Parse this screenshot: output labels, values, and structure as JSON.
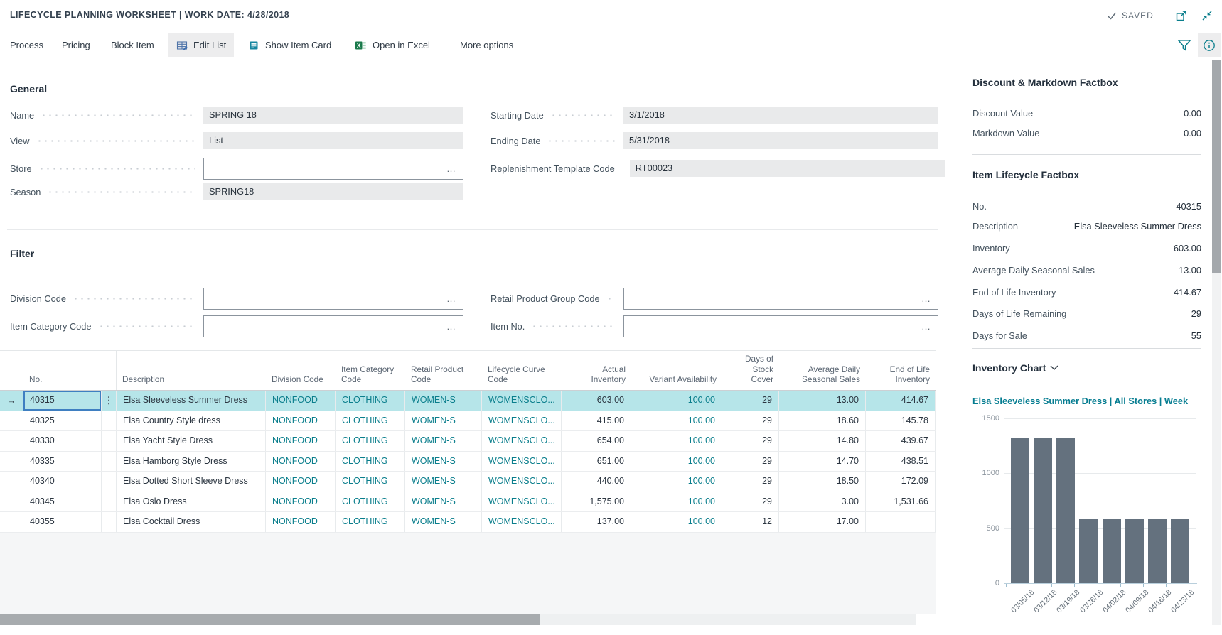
{
  "colors": {
    "accent_teal": "#0a7e8c",
    "selected_row": "#b6e5e9",
    "bar": "#64717e",
    "focus_border": "#3f7fc1"
  },
  "titlebar": {
    "title": "LIFECYCLE PLANNING WORKSHEET | WORK DATE: 4/28/2018",
    "saved": "SAVED"
  },
  "ribbon": {
    "items": [
      "Process",
      "Pricing",
      "Block Item"
    ],
    "edit_list": "Edit List",
    "show_item_card": "Show Item Card",
    "open_in_excel": "Open in Excel",
    "more_options": "More options"
  },
  "general": {
    "heading": "General",
    "name_label": "Name",
    "name_value": "SPRING 18",
    "view_label": "View",
    "view_value": "List",
    "store_label": "Store",
    "store_value": "",
    "season_label": "Season",
    "season_value": "SPRING18",
    "starting_date_label": "Starting Date",
    "starting_date_value": "3/1/2018",
    "ending_date_label": "Ending Date",
    "ending_date_value": "5/31/2018",
    "replenishment_template_code_label": "Replenishment Template Code",
    "replenishment_template_code_value": "RT00023"
  },
  "filter": {
    "heading": "Filter",
    "division_code_label": "Division Code",
    "division_code_value": "",
    "item_category_code_label": "Item Category Code",
    "item_category_code_value": "",
    "retail_product_group_code_label": "Retail Product Group Code",
    "retail_product_group_code_value": "",
    "item_no_label": "Item No.",
    "item_no_value": ""
  },
  "ui": {
    "ellipsis": "…",
    "row_arrow": "→",
    "row_menu": "⋮"
  },
  "table": {
    "columns": [
      {
        "key": "no",
        "label": "No.",
        "align": "left",
        "link": false
      },
      {
        "key": "description",
        "label": "Description",
        "align": "left",
        "link": false
      },
      {
        "key": "division_code",
        "label": "Division Code",
        "align": "left",
        "link": true
      },
      {
        "key": "item_category_code",
        "label": "Item Category Code",
        "align": "left",
        "link": true
      },
      {
        "key": "retail_product_code",
        "label": "Retail Product Code",
        "align": "left",
        "link": true
      },
      {
        "key": "lifecycle_curve_code",
        "label": "Lifecycle Curve Code",
        "align": "left",
        "link": true
      },
      {
        "key": "actual_inventory",
        "label": "Actual Inventory",
        "align": "right",
        "link": false
      },
      {
        "key": "variant_availability",
        "label": "Variant Availability",
        "align": "right",
        "link": true
      },
      {
        "key": "days_of_stock_cover",
        "label": "Days of Stock Cover",
        "align": "right",
        "link": false
      },
      {
        "key": "average_daily_seasonal_sales",
        "label": "Average Daily Seasonal Sales",
        "align": "right",
        "link": false
      },
      {
        "key": "end_of_life_inventory",
        "label": "End of Life Inventory",
        "align": "right",
        "link": false
      }
    ],
    "rows": [
      {
        "selected": true,
        "no": "40315",
        "description": "Elsa Sleeveless Summer Dress",
        "division_code": "NONFOOD",
        "item_category_code": "CLOTHING",
        "retail_product_code": "WOMEN-S",
        "lifecycle_curve_code": "WOMENSCLO...",
        "actual_inventory": "603.00",
        "variant_availability": "100.00",
        "days_of_stock_cover": "29",
        "average_daily_seasonal_sales": "13.00",
        "end_of_life_inventory": "414.67"
      },
      {
        "selected": false,
        "no": "40325",
        "description": "Elsa Country Style dress",
        "division_code": "NONFOOD",
        "item_category_code": "CLOTHING",
        "retail_product_code": "WOMEN-S",
        "lifecycle_curve_code": "WOMENSCLO...",
        "actual_inventory": "415.00",
        "variant_availability": "100.00",
        "days_of_stock_cover": "29",
        "average_daily_seasonal_sales": "18.60",
        "end_of_life_inventory": "145.78"
      },
      {
        "selected": false,
        "no": "40330",
        "description": "Elsa Yacht Style Dress",
        "division_code": "NONFOOD",
        "item_category_code": "CLOTHING",
        "retail_product_code": "WOMEN-S",
        "lifecycle_curve_code": "WOMENSCLO...",
        "actual_inventory": "654.00",
        "variant_availability": "100.00",
        "days_of_stock_cover": "29",
        "average_daily_seasonal_sales": "14.80",
        "end_of_life_inventory": "439.67"
      },
      {
        "selected": false,
        "no": "40335",
        "description": "Elsa Hamborg Style Dress",
        "division_code": "NONFOOD",
        "item_category_code": "CLOTHING",
        "retail_product_code": "WOMEN-S",
        "lifecycle_curve_code": "WOMENSCLO...",
        "actual_inventory": "651.00",
        "variant_availability": "100.00",
        "days_of_stock_cover": "29",
        "average_daily_seasonal_sales": "14.70",
        "end_of_life_inventory": "438.51"
      },
      {
        "selected": false,
        "no": "40340",
        "description": "Elsa Dotted Short Sleeve Dress",
        "division_code": "NONFOOD",
        "item_category_code": "CLOTHING",
        "retail_product_code": "WOMEN-S",
        "lifecycle_curve_code": "WOMENSCLO...",
        "actual_inventory": "440.00",
        "variant_availability": "100.00",
        "days_of_stock_cover": "29",
        "average_daily_seasonal_sales": "18.50",
        "end_of_life_inventory": "172.09"
      },
      {
        "selected": false,
        "no": "40345",
        "description": "Elsa Oslo Dress",
        "division_code": "NONFOOD",
        "item_category_code": "CLOTHING",
        "retail_product_code": "WOMEN-S",
        "lifecycle_curve_code": "WOMENSCLO...",
        "actual_inventory": "1,575.00",
        "variant_availability": "100.00",
        "days_of_stock_cover": "29",
        "average_daily_seasonal_sales": "3.00",
        "end_of_life_inventory": "1,531.66"
      },
      {
        "selected": false,
        "no": "40355",
        "description": "Elsa Cocktail Dress",
        "division_code": "NONFOOD",
        "item_category_code": "CLOTHING",
        "retail_product_code": "WOMEN-S",
        "lifecycle_curve_code": "WOMENSCLO...",
        "actual_inventory": "137.00",
        "variant_availability": "100.00",
        "days_of_stock_cover": "12",
        "average_daily_seasonal_sales": "17.00",
        "end_of_life_inventory": ""
      }
    ]
  },
  "factbox": {
    "discount_markdown": {
      "title": "Discount & Markdown Factbox",
      "rows": [
        [
          "Discount Value",
          "0.00"
        ],
        [
          "Markdown Value",
          "0.00"
        ]
      ]
    },
    "item_lifecycle": {
      "title": "Item Lifecycle Factbox",
      "rows": [
        [
          "No.",
          "40315"
        ],
        [
          "Description",
          "Elsa Sleeveless Summer Dress"
        ],
        [
          "Inventory",
          "603.00"
        ],
        [
          "Average Daily Seasonal Sales",
          "13.00"
        ],
        [
          "End of Life Inventory",
          "414.67"
        ],
        [
          "Days of Life Remaining",
          "29"
        ],
        [
          "Days for Sale",
          "55"
        ]
      ]
    },
    "inventory_chart_header": "Inventory Chart"
  },
  "chart_data": {
    "type": "bar",
    "title": "Elsa Sleeveless Summer Dress | All Stores | Week",
    "categories": [
      "03/05/18",
      "03/12/18",
      "03/19/18",
      "03/26/18",
      "04/02/18",
      "04/09/18",
      "04/16/18",
      "04/23/18"
    ],
    "values": [
      1320,
      1320,
      1320,
      585,
      585,
      585,
      585,
      585
    ],
    "xlabel": "",
    "ylabel": "",
    "ylim": [
      0,
      1500
    ],
    "yticks": [
      0,
      500,
      1000,
      1500
    ],
    "grid": true,
    "legend": "none",
    "bar_color": "#64717e"
  }
}
